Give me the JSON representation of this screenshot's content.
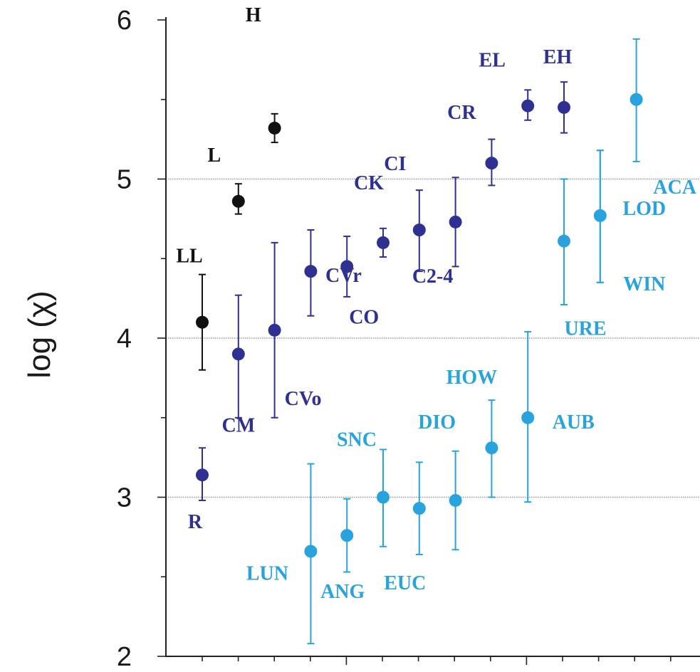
{
  "chart_data": {
    "type": "scatter",
    "ylabel": "log (χ)",
    "ylim": [
      2,
      6
    ],
    "yticks": [
      2,
      3,
      4,
      5,
      6
    ],
    "gridlines_at": [
      3,
      4,
      5
    ],
    "series": [
      {
        "color": "#111111",
        "points": [
          {
            "label": "LL",
            "x": 1,
            "y": 4.1,
            "lo": 3.8,
            "hi": 4.4
          },
          {
            "label": "L",
            "x": 2,
            "y": 4.86,
            "lo": 4.78,
            "hi": 4.97
          },
          {
            "label": "H",
            "x": 3,
            "y": 5.32,
            "lo": 5.23,
            "hi": 5.41
          }
        ]
      },
      {
        "color": "#2e3192",
        "points": [
          {
            "label": "R",
            "x": 1,
            "y": 3.14,
            "lo": 2.98,
            "hi": 3.31
          },
          {
            "label": "CM",
            "x": 2,
            "y": 3.9,
            "lo": 3.5,
            "hi": 4.27
          },
          {
            "label": "CVo",
            "x": 3,
            "y": 4.05,
            "lo": 3.5,
            "hi": 4.6
          },
          {
            "label": "CVr",
            "x": 4,
            "y": 4.42,
            "lo": 4.14,
            "hi": 4.68
          },
          {
            "label": "CO",
            "x": 5,
            "y": 4.45,
            "lo": 4.26,
            "hi": 4.64
          },
          {
            "label": "CK",
            "x": 6,
            "y": 4.6,
            "lo": 4.51,
            "hi": 4.69
          },
          {
            "label": "CI",
            "x": 7,
            "y": 4.68,
            "lo": 4.42,
            "hi": 4.93
          },
          {
            "label": "C2-4",
            "x": 8,
            "y": 4.73,
            "lo": 4.45,
            "hi": 5.01
          },
          {
            "label": "CR",
            "x": 9,
            "y": 5.1,
            "lo": 4.96,
            "hi": 5.25
          },
          {
            "label": "EL",
            "x": 10,
            "y": 5.46,
            "lo": 5.37,
            "hi": 5.56
          },
          {
            "label": "EH",
            "x": 11,
            "y": 5.45,
            "lo": 5.29,
            "hi": 5.61
          }
        ]
      },
      {
        "color": "#29a3dd",
        "points": [
          {
            "label": "LUN",
            "x": 4,
            "y": 2.66,
            "lo": 2.08,
            "hi": 3.21
          },
          {
            "label": "ANG",
            "x": 5,
            "y": 2.76,
            "lo": 2.53,
            "hi": 2.99
          },
          {
            "label": "SNC",
            "x": 6,
            "y": 3.0,
            "lo": 2.69,
            "hi": 3.3
          },
          {
            "label": "EUC",
            "x": 7,
            "y": 2.93,
            "lo": 2.64,
            "hi": 3.22
          },
          {
            "label": "DIO",
            "x": 8,
            "y": 2.98,
            "lo": 2.67,
            "hi": 3.29
          },
          {
            "label": "HOW",
            "x": 9,
            "y": 3.31,
            "lo": 3.0,
            "hi": 3.61
          },
          {
            "label": "AUB",
            "x": 10,
            "y": 3.5,
            "lo": 2.97,
            "hi": 4.04
          },
          {
            "label": "URE",
            "x": 11,
            "y": 4.61,
            "lo": 4.21,
            "hi": 5.0
          },
          {
            "label": "LOD",
            "x": 12,
            "y": 4.77,
            "lo": 4.35,
            "hi": 5.18
          },
          {
            "label": "WIN",
            "x": 12,
            "y": 4.77,
            "lo": 4.35,
            "hi": 5.18
          },
          {
            "label": "ACA",
            "x": 13,
            "y": 5.5,
            "lo": 5.11,
            "hi": 5.88
          }
        ]
      }
    ]
  }
}
